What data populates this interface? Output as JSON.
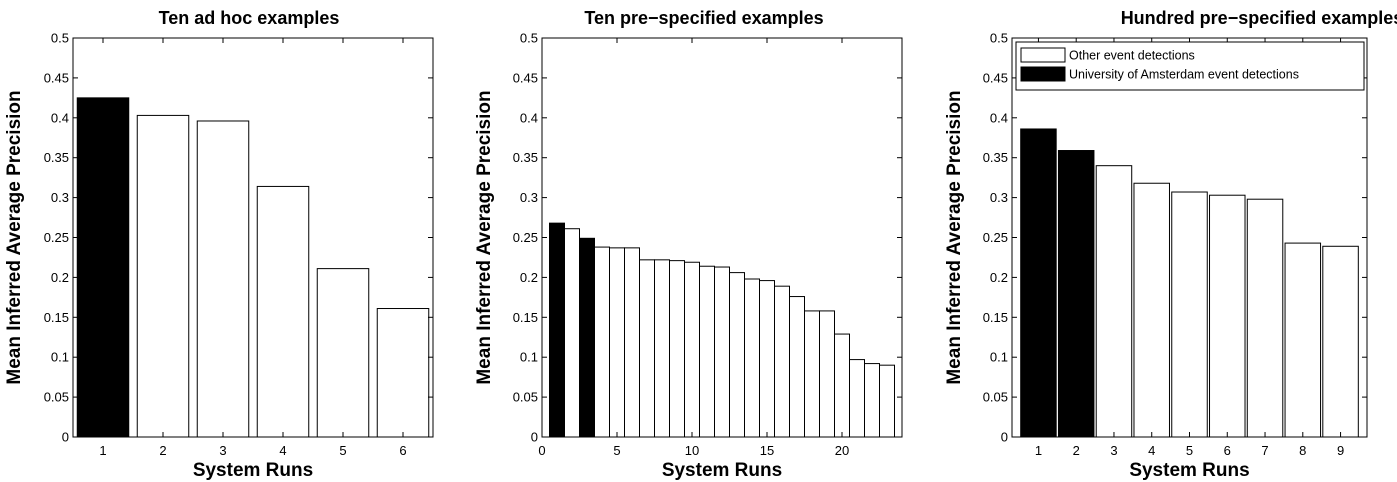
{
  "chart_data": [
    {
      "type": "bar",
      "title": "Ten ad hoc examples",
      "xlabel": "System Runs",
      "ylabel": "Mean Inferred Average Precision",
      "ylim": [
        0,
        0.5
      ],
      "yticks": [
        "0",
        "0.05",
        "0.1",
        "0.15",
        "0.2",
        "0.25",
        "0.3",
        "0.35",
        "0.4",
        "0.45",
        "0.5"
      ],
      "xlim": [
        0.5,
        6.5
      ],
      "xticks": [
        "1",
        "2",
        "3",
        "4",
        "5",
        "6"
      ],
      "x": [
        1,
        2,
        3,
        4,
        5,
        6
      ],
      "values": [
        0.425,
        0.403,
        0.396,
        0.314,
        0.211,
        0.161
      ],
      "highlight": [
        true,
        false,
        false,
        false,
        false,
        false
      ]
    },
    {
      "type": "bar",
      "title": "Ten pre−specified examples",
      "xlabel": "System Runs",
      "ylabel": "Mean Inferred Average Precision",
      "ylim": [
        0,
        0.5
      ],
      "yticks": [
        "0",
        "0.05",
        "0.1",
        "0.15",
        "0.2",
        "0.25",
        "0.3",
        "0.35",
        "0.4",
        "0.45",
        "0.5"
      ],
      "xlim": [
        0,
        24
      ],
      "xticks": [
        "0",
        "5",
        "10",
        "15",
        "20"
      ],
      "x": [
        1,
        2,
        3,
        4,
        5,
        6,
        7,
        8,
        9,
        10,
        11,
        12,
        13,
        14,
        15,
        16,
        17,
        18,
        19,
        20,
        21,
        22,
        23
      ],
      "values": [
        0.268,
        0.261,
        0.249,
        0.238,
        0.237,
        0.237,
        0.222,
        0.222,
        0.221,
        0.219,
        0.214,
        0.213,
        0.206,
        0.198,
        0.196,
        0.189,
        0.176,
        0.158,
        0.158,
        0.129,
        0.097,
        0.092,
        0.09
      ],
      "highlight": [
        true,
        false,
        true,
        false,
        false,
        false,
        false,
        false,
        false,
        false,
        false,
        false,
        false,
        false,
        false,
        false,
        false,
        false,
        false,
        false,
        false,
        false,
        false
      ]
    },
    {
      "type": "bar",
      "title": "Hundred pre−specified examples",
      "xlabel": "System Runs",
      "ylabel": "Mean Inferred Average Precision",
      "ylim": [
        0,
        0.5
      ],
      "yticks": [
        "0",
        "0.05",
        "0.1",
        "0.15",
        "0.2",
        "0.25",
        "0.3",
        "0.35",
        "0.4",
        "0.45",
        "0.5"
      ],
      "xlim": [
        0.3,
        9.7
      ],
      "xticks": [
        "1",
        "2",
        "3",
        "4",
        "5",
        "6",
        "7",
        "8",
        "9"
      ],
      "x": [
        1,
        2,
        3,
        4,
        5,
        6,
        7,
        8,
        9
      ],
      "values": [
        0.386,
        0.359,
        0.34,
        0.318,
        0.307,
        0.303,
        0.298,
        0.243,
        0.239
      ],
      "highlight": [
        true,
        true,
        false,
        false,
        false,
        false,
        false,
        false,
        false
      ],
      "legend": {
        "position": "top",
        "entries": [
          {
            "label": "Other event detections",
            "color": "#ffffff"
          },
          {
            "label": "University of Amsterdam event detections",
            "color": "#000000"
          }
        ]
      }
    }
  ],
  "colors": {
    "highlight_bar": "#000000",
    "other_bar": "#ffffff",
    "axes": "#000000"
  }
}
